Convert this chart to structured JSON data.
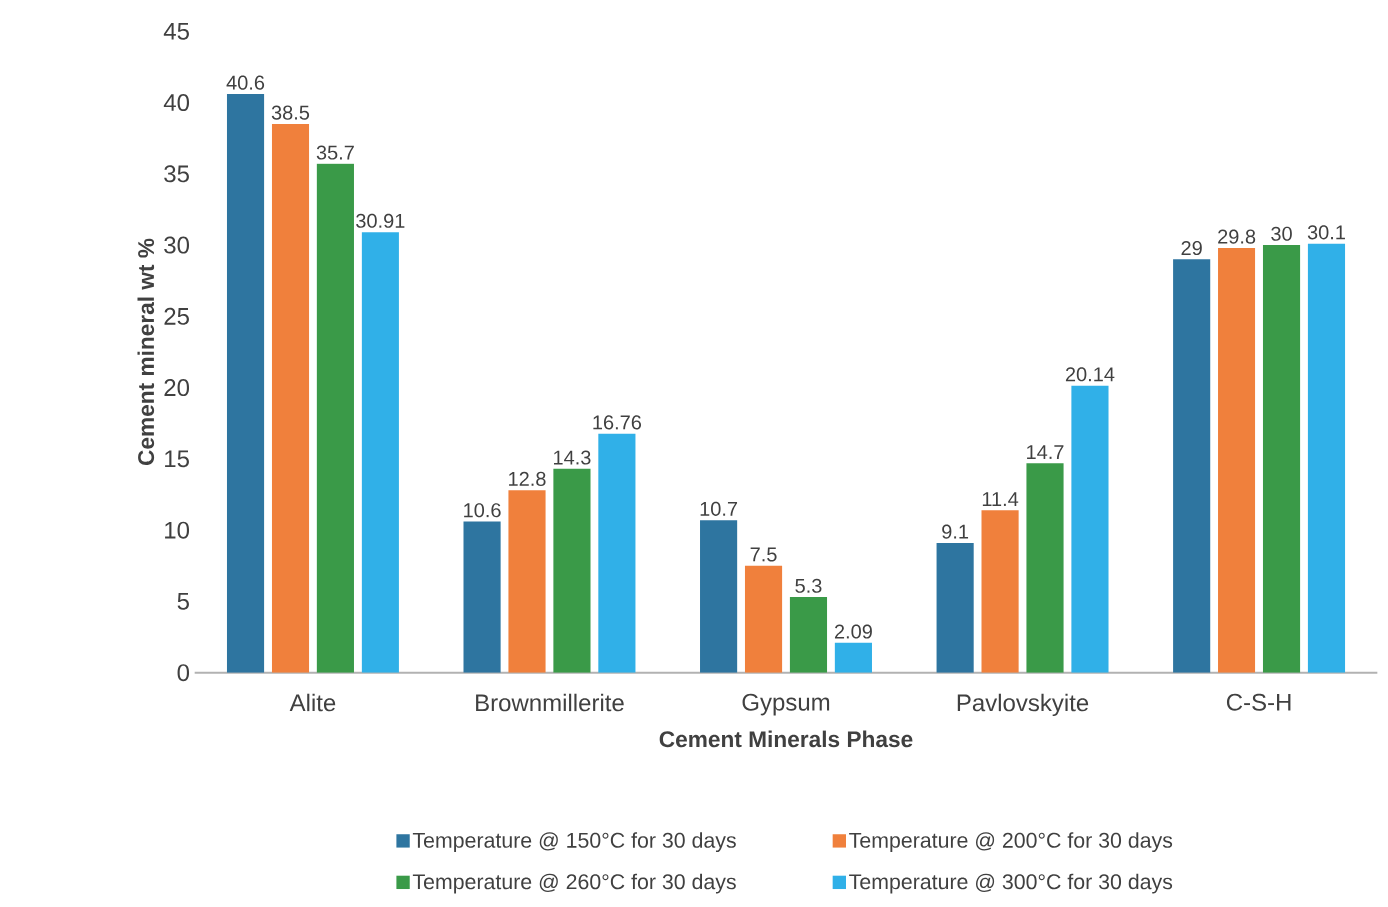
{
  "chart_data": {
    "type": "bar",
    "xlabel": "Cement Minerals  Phase",
    "ylabel": "Cement mineral  wt %",
    "categories": [
      "Alite",
      "Brownmillerite",
      "Gypsum",
      "Pavlovskyite",
      "C-S-H"
    ],
    "series": [
      {
        "name": "Temperature  @ 150°C for 30 days",
        "color": "#2e75a0",
        "values": [
          40.6,
          10.6,
          10.7,
          9.1,
          29
        ]
      },
      {
        "name": "Temperature @ 200°C for 30 days",
        "color": "#f0803c",
        "values": [
          38.5,
          12.8,
          7.5,
          11.4,
          29.8
        ]
      },
      {
        "name": "Temperature @ 260°C for 30 days",
        "color": "#3a9a48",
        "values": [
          35.7,
          14.3,
          5.3,
          14.7,
          30
        ]
      },
      {
        "name": "Temperature @ 300°C for 30 days",
        "color": "#30b0e8",
        "values": [
          30.91,
          16.76,
          2.09,
          20.14,
          30.1
        ]
      }
    ],
    "ylim": [
      0,
      45
    ],
    "yticks": [
      0,
      5,
      10,
      15,
      20,
      25,
      30,
      35,
      40,
      45
    ],
    "data_labels": true,
    "grid": false,
    "legend": "bottom"
  }
}
